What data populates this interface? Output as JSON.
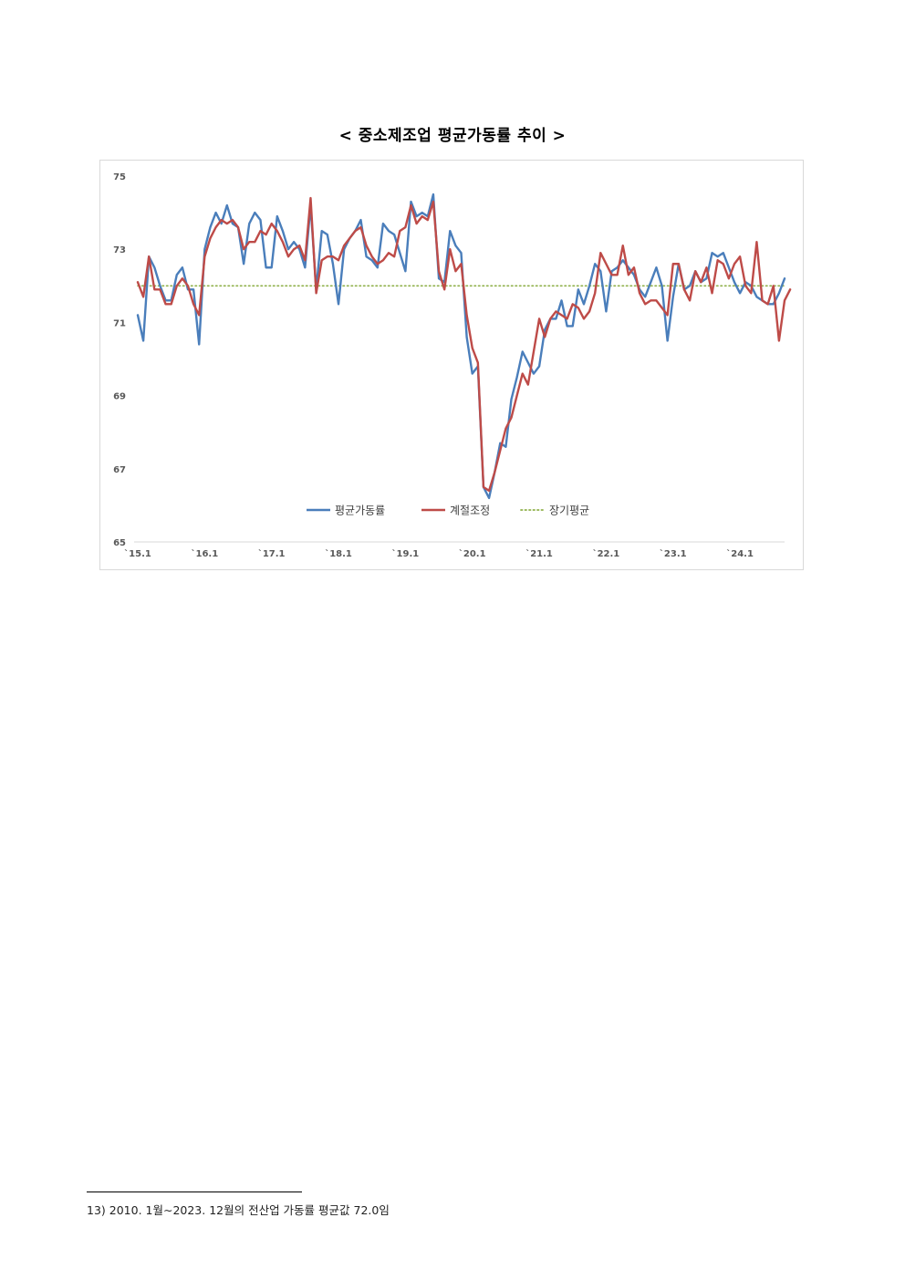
{
  "page": {
    "title": "< 중소제조업 평균가동률 추이 >",
    "footnote": "13) 2010. 1월∼2023. 12월의 전산업 가동률 평균값 72.0임"
  },
  "chart_data": {
    "type": "line",
    "title": "< 중소제조업 평균가동률 추이 >",
    "xlabel": "",
    "ylabel": "",
    "ylim": [
      65,
      75
    ],
    "yticks": [
      65,
      67,
      69,
      71,
      73,
      75
    ],
    "xticks": [
      {
        "label": "`15.1",
        "index": 0
      },
      {
        "label": "`16.1",
        "index": 12
      },
      {
        "label": "`17.1",
        "index": 24
      },
      {
        "label": "`18.1",
        "index": 36
      },
      {
        "label": "`19.1",
        "index": 48
      },
      {
        "label": "`20.1",
        "index": 60
      },
      {
        "label": "`21.1",
        "index": 72
      },
      {
        "label": "`22.1",
        "index": 84
      },
      {
        "label": "`23.1",
        "index": 96
      },
      {
        "label": "`24.1",
        "index": 108
      }
    ],
    "grid": false,
    "legend_position": "bottom-center",
    "series": [
      {
        "name": "평균가동률",
        "color": "#4a7ebb",
        "style": "solid",
        "values": [
          71.2,
          70.5,
          72.8,
          72.5,
          72.0,
          71.6,
          71.6,
          72.3,
          72.5,
          71.9,
          71.9,
          70.4,
          73.0,
          73.6,
          74.0,
          73.7,
          74.2,
          73.7,
          73.6,
          72.6,
          73.7,
          74.0,
          73.8,
          72.5,
          72.5,
          73.9,
          73.5,
          73.0,
          73.2,
          73.0,
          72.5,
          74.2,
          71.9,
          73.5,
          73.4,
          72.6,
          71.5,
          73.0,
          73.3,
          73.5,
          73.8,
          72.8,
          72.7,
          72.5,
          73.7,
          73.5,
          73.4,
          72.9,
          72.4,
          74.3,
          73.9,
          74.0,
          73.9,
          74.5,
          72.2,
          72.1,
          73.5,
          73.1,
          72.9,
          70.6,
          69.6,
          69.8,
          66.5,
          66.2,
          66.9,
          67.7,
          67.6,
          68.9,
          69.5,
          70.2,
          69.9,
          69.6,
          69.8,
          70.8,
          71.1,
          71.1,
          71.6,
          70.9,
          70.9,
          71.9,
          71.5,
          72.0,
          72.6,
          72.4,
          71.3,
          72.4,
          72.5,
          72.7,
          72.5,
          72.3,
          71.9,
          71.7,
          72.1,
          72.5,
          72.0,
          70.5,
          71.7,
          72.6,
          71.9,
          72.0,
          72.4,
          72.1,
          72.2,
          72.9,
          72.8,
          72.9,
          72.5,
          72.1,
          71.8,
          72.1,
          72.0,
          71.7,
          71.6,
          71.5,
          71.5,
          71.8,
          72.2
        ]
      },
      {
        "name": "계절조정",
        "color": "#be4b48",
        "style": "solid",
        "values": [
          72.1,
          71.7,
          72.8,
          71.9,
          71.9,
          71.5,
          71.5,
          72.0,
          72.2,
          72.0,
          71.5,
          71.2,
          72.8,
          73.3,
          73.6,
          73.8,
          73.7,
          73.8,
          73.6,
          73.0,
          73.2,
          73.2,
          73.5,
          73.4,
          73.7,
          73.5,
          73.2,
          72.8,
          73.0,
          73.1,
          72.7,
          74.4,
          71.8,
          72.7,
          72.8,
          72.8,
          72.7,
          73.1,
          73.3,
          73.5,
          73.6,
          73.1,
          72.8,
          72.6,
          72.7,
          72.9,
          72.8,
          73.5,
          73.6,
          74.2,
          73.7,
          73.9,
          73.8,
          74.3,
          72.4,
          71.9,
          73.0,
          72.4,
          72.6,
          71.2,
          70.3,
          69.9,
          66.5,
          66.4,
          66.9,
          67.5,
          68.1,
          68.4,
          69.0,
          69.6,
          69.3,
          70.2,
          71.1,
          70.6,
          71.1,
          71.3,
          71.2,
          71.1,
          71.5,
          71.4,
          71.1,
          71.3,
          71.8,
          72.9,
          72.6,
          72.3,
          72.3,
          73.1,
          72.3,
          72.5,
          71.8,
          71.5,
          71.6,
          71.6,
          71.4,
          71.2,
          72.6,
          72.6,
          71.9,
          71.6,
          72.4,
          72.1,
          72.5,
          71.8,
          72.7,
          72.6,
          72.2,
          72.6,
          72.8,
          72.0,
          71.8,
          73.2,
          71.6,
          71.5,
          72.0,
          70.5,
          71.6,
          71.9
        ]
      },
      {
        "name": "장기평균",
        "color": "#8fb04a",
        "style": "dotted",
        "values": [
          72.0
        ]
      }
    ]
  }
}
